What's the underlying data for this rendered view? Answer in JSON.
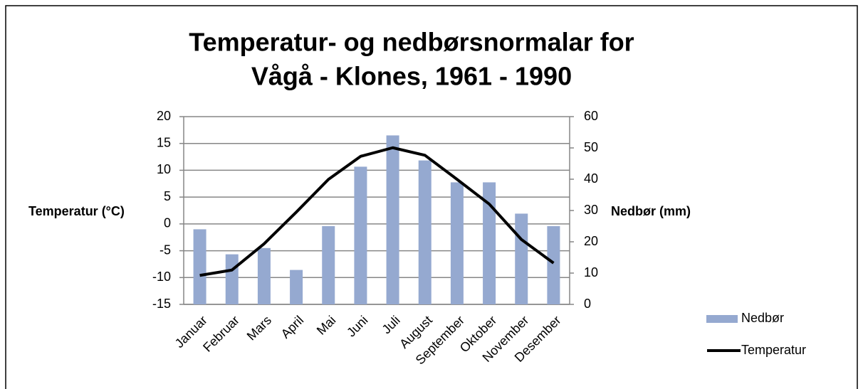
{
  "chart_data": {
    "type": "combo",
    "title": [
      "Temperatur- og nedbørsnormalar for",
      "Vågå - Klones, 1961 - 1990"
    ],
    "y_label": "Temperatur (°C)",
    "y2_label": "Nedbør (mm)",
    "categories": [
      "Januar",
      "Februar",
      "Mars",
      "April",
      "Mai",
      "Juni",
      "Juli",
      "August",
      "September",
      "Oktober",
      "November",
      "Desember"
    ],
    "series": [
      {
        "name": "Nedbør",
        "type": "bar",
        "axis": "y2",
        "color": "#95a9d0",
        "values": [
          24,
          16,
          18,
          11,
          25,
          44,
          54,
          46,
          39,
          39,
          29,
          25
        ]
      },
      {
        "name": "Temperatur",
        "type": "line",
        "axis": "y",
        "color": "#000000",
        "values": [
          -9.6,
          -8.6,
          -3.7,
          2.2,
          8.3,
          12.6,
          14.2,
          12.8,
          8.3,
          3.7,
          -2.9,
          -7.3
        ]
      }
    ],
    "ylim": [
      -15,
      20
    ],
    "yticks": [
      -15,
      -10,
      -5,
      0,
      5,
      10,
      15,
      20
    ],
    "y2lim": [
      0,
      60
    ],
    "y2ticks": [
      0,
      10,
      20,
      30,
      40,
      50,
      60
    ],
    "grid": true,
    "legend": "right"
  }
}
